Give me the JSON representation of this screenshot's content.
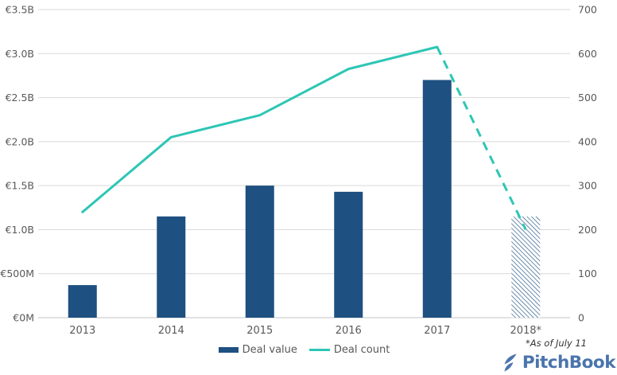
{
  "chart_data": {
    "type": "combo-bar-line",
    "title": "",
    "categories": [
      "2013",
      "2014",
      "2015",
      "2016",
      "2017",
      "2018*"
    ],
    "series": [
      {
        "name": "Deal value",
        "type": "bar",
        "axis": "left",
        "color": "#1e5081",
        "values_eur_m": [
          370,
          1150,
          1500,
          1430,
          2700,
          1150
        ],
        "hatched_categories": [
          "2018*"
        ]
      },
      {
        "name": "Deal count",
        "type": "line",
        "axis": "right",
        "color": "#2dc6b5",
        "values": [
          240,
          410,
          460,
          565,
          615,
          200
        ],
        "dashed_from_category": "2017"
      }
    ],
    "left_axis": {
      "unit": "EUR",
      "min": 0,
      "max": 3500,
      "tick_labels": [
        "€0M",
        "€500M",
        "€1.0B",
        "€1.5B",
        "€2.0B",
        "€2.5B",
        "€3.0B",
        "€3.5B"
      ]
    },
    "right_axis": {
      "min": 0,
      "max": 700,
      "tick_labels": [
        "0",
        "100",
        "200",
        "300",
        "400",
        "500",
        "600",
        "700"
      ]
    },
    "grid": true,
    "legend_position": "bottom-center"
  },
  "legend": {
    "items": [
      {
        "label": "Deal value",
        "swatch": "bar"
      },
      {
        "label": "Deal count",
        "swatch": "line"
      }
    ]
  },
  "footnote": "*As of July 11",
  "logo": {
    "text": "PitchBook",
    "color": "#4a74ac",
    "icon": "pitchbook-bird-icon"
  },
  "colors": {
    "grid": "#d9d9d9",
    "axis_baseline": "#c6c6c6",
    "axis_text": "#595959",
    "background": "#ffffff"
  }
}
